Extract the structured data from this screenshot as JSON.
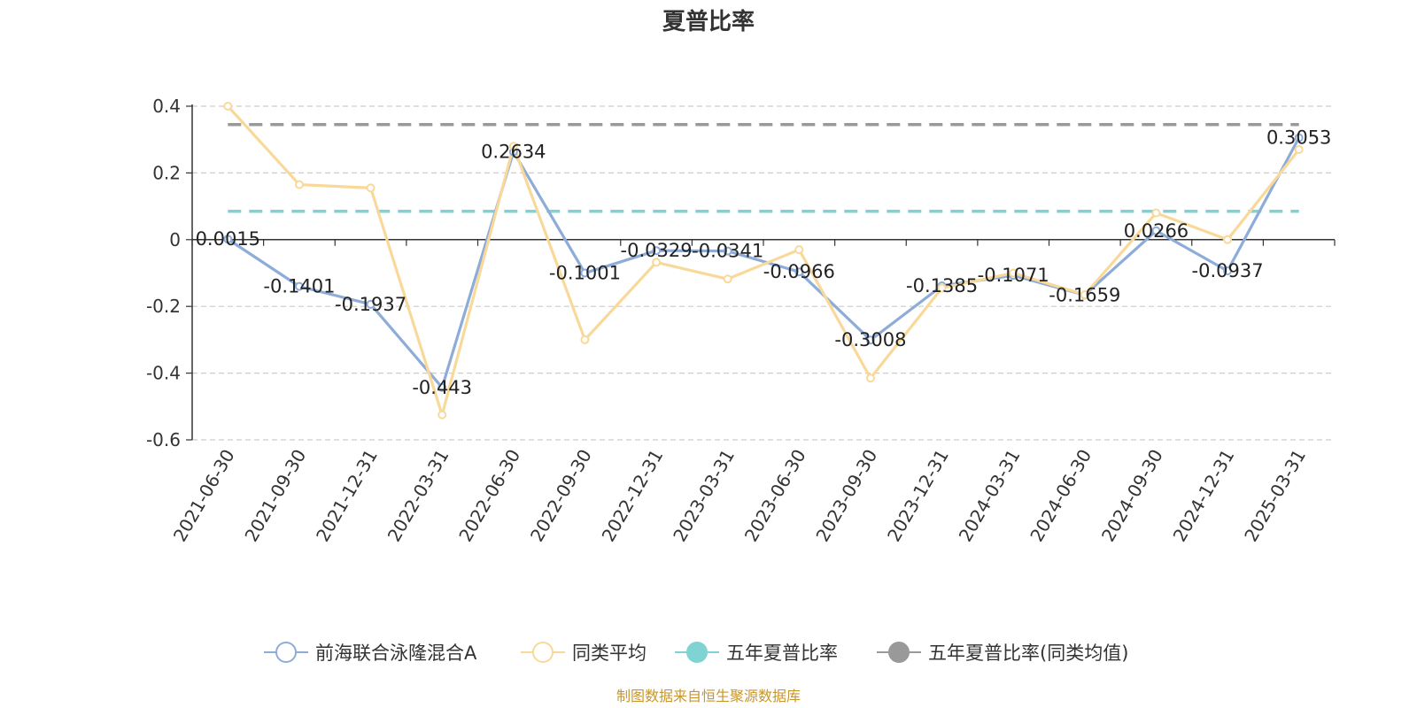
{
  "chart_data": {
    "type": "line",
    "title": "夏普比率",
    "x": [
      "2021-06-30",
      "2021-09-30",
      "2021-12-31",
      "2022-03-31",
      "2022-06-30",
      "2022-09-30",
      "2022-12-31",
      "2023-03-31",
      "2023-06-30",
      "2023-09-30",
      "2023-12-31",
      "2024-03-31",
      "2024-06-30",
      "2024-09-30",
      "2024-12-31",
      "2025-03-31"
    ],
    "ylim": [
      -0.6,
      0.4
    ],
    "yticks": [
      0.4,
      0.2,
      0,
      -0.2,
      -0.4,
      -0.6
    ],
    "ytick_labels": [
      "0.4",
      "0.2",
      "0",
      "-0.2",
      "-0.4",
      "-0.6"
    ],
    "grid": true,
    "legend_position": "bottom",
    "series": [
      {
        "name": "前海联合泳隆混合A",
        "color": "#8eacd8",
        "marker": "circle",
        "values": [
          0.0015,
          -0.1401,
          -0.1937,
          -0.443,
          0.2634,
          -0.1001,
          -0.0329,
          -0.0341,
          -0.0966,
          -0.3008,
          -0.1385,
          -0.1071,
          -0.1659,
          0.0266,
          -0.0937,
          0.3053
        ],
        "labels": [
          "0.0015",
          "-0.1401",
          "-0.1937",
          "-0.443",
          "0.2634",
          "-0.1001",
          "-0.0329",
          "-0.0341",
          "-0.0966",
          "-0.3008",
          "-0.1385",
          "-0.1071",
          "-0.1659",
          "0.0266",
          "-0.0937",
          "0.3053"
        ]
      },
      {
        "name": "同类平均",
        "color": "#f9d99a",
        "marker": "circle",
        "values": [
          0.4,
          0.165,
          0.155,
          -0.525,
          0.28,
          -0.3,
          -0.068,
          -0.118,
          -0.03,
          -0.415,
          -0.145,
          -0.1,
          -0.165,
          0.08,
          0.0,
          0.27
        ]
      },
      {
        "name": "五年夏普比率",
        "color": "#7fd3d3",
        "style": "dashed",
        "constant": 0.085
      },
      {
        "name": "五年夏普比率(同类均值)",
        "color": "#999999",
        "style": "dashed",
        "constant": 0.345
      }
    ],
    "source": "制图数据来自恒生聚源数据库"
  }
}
